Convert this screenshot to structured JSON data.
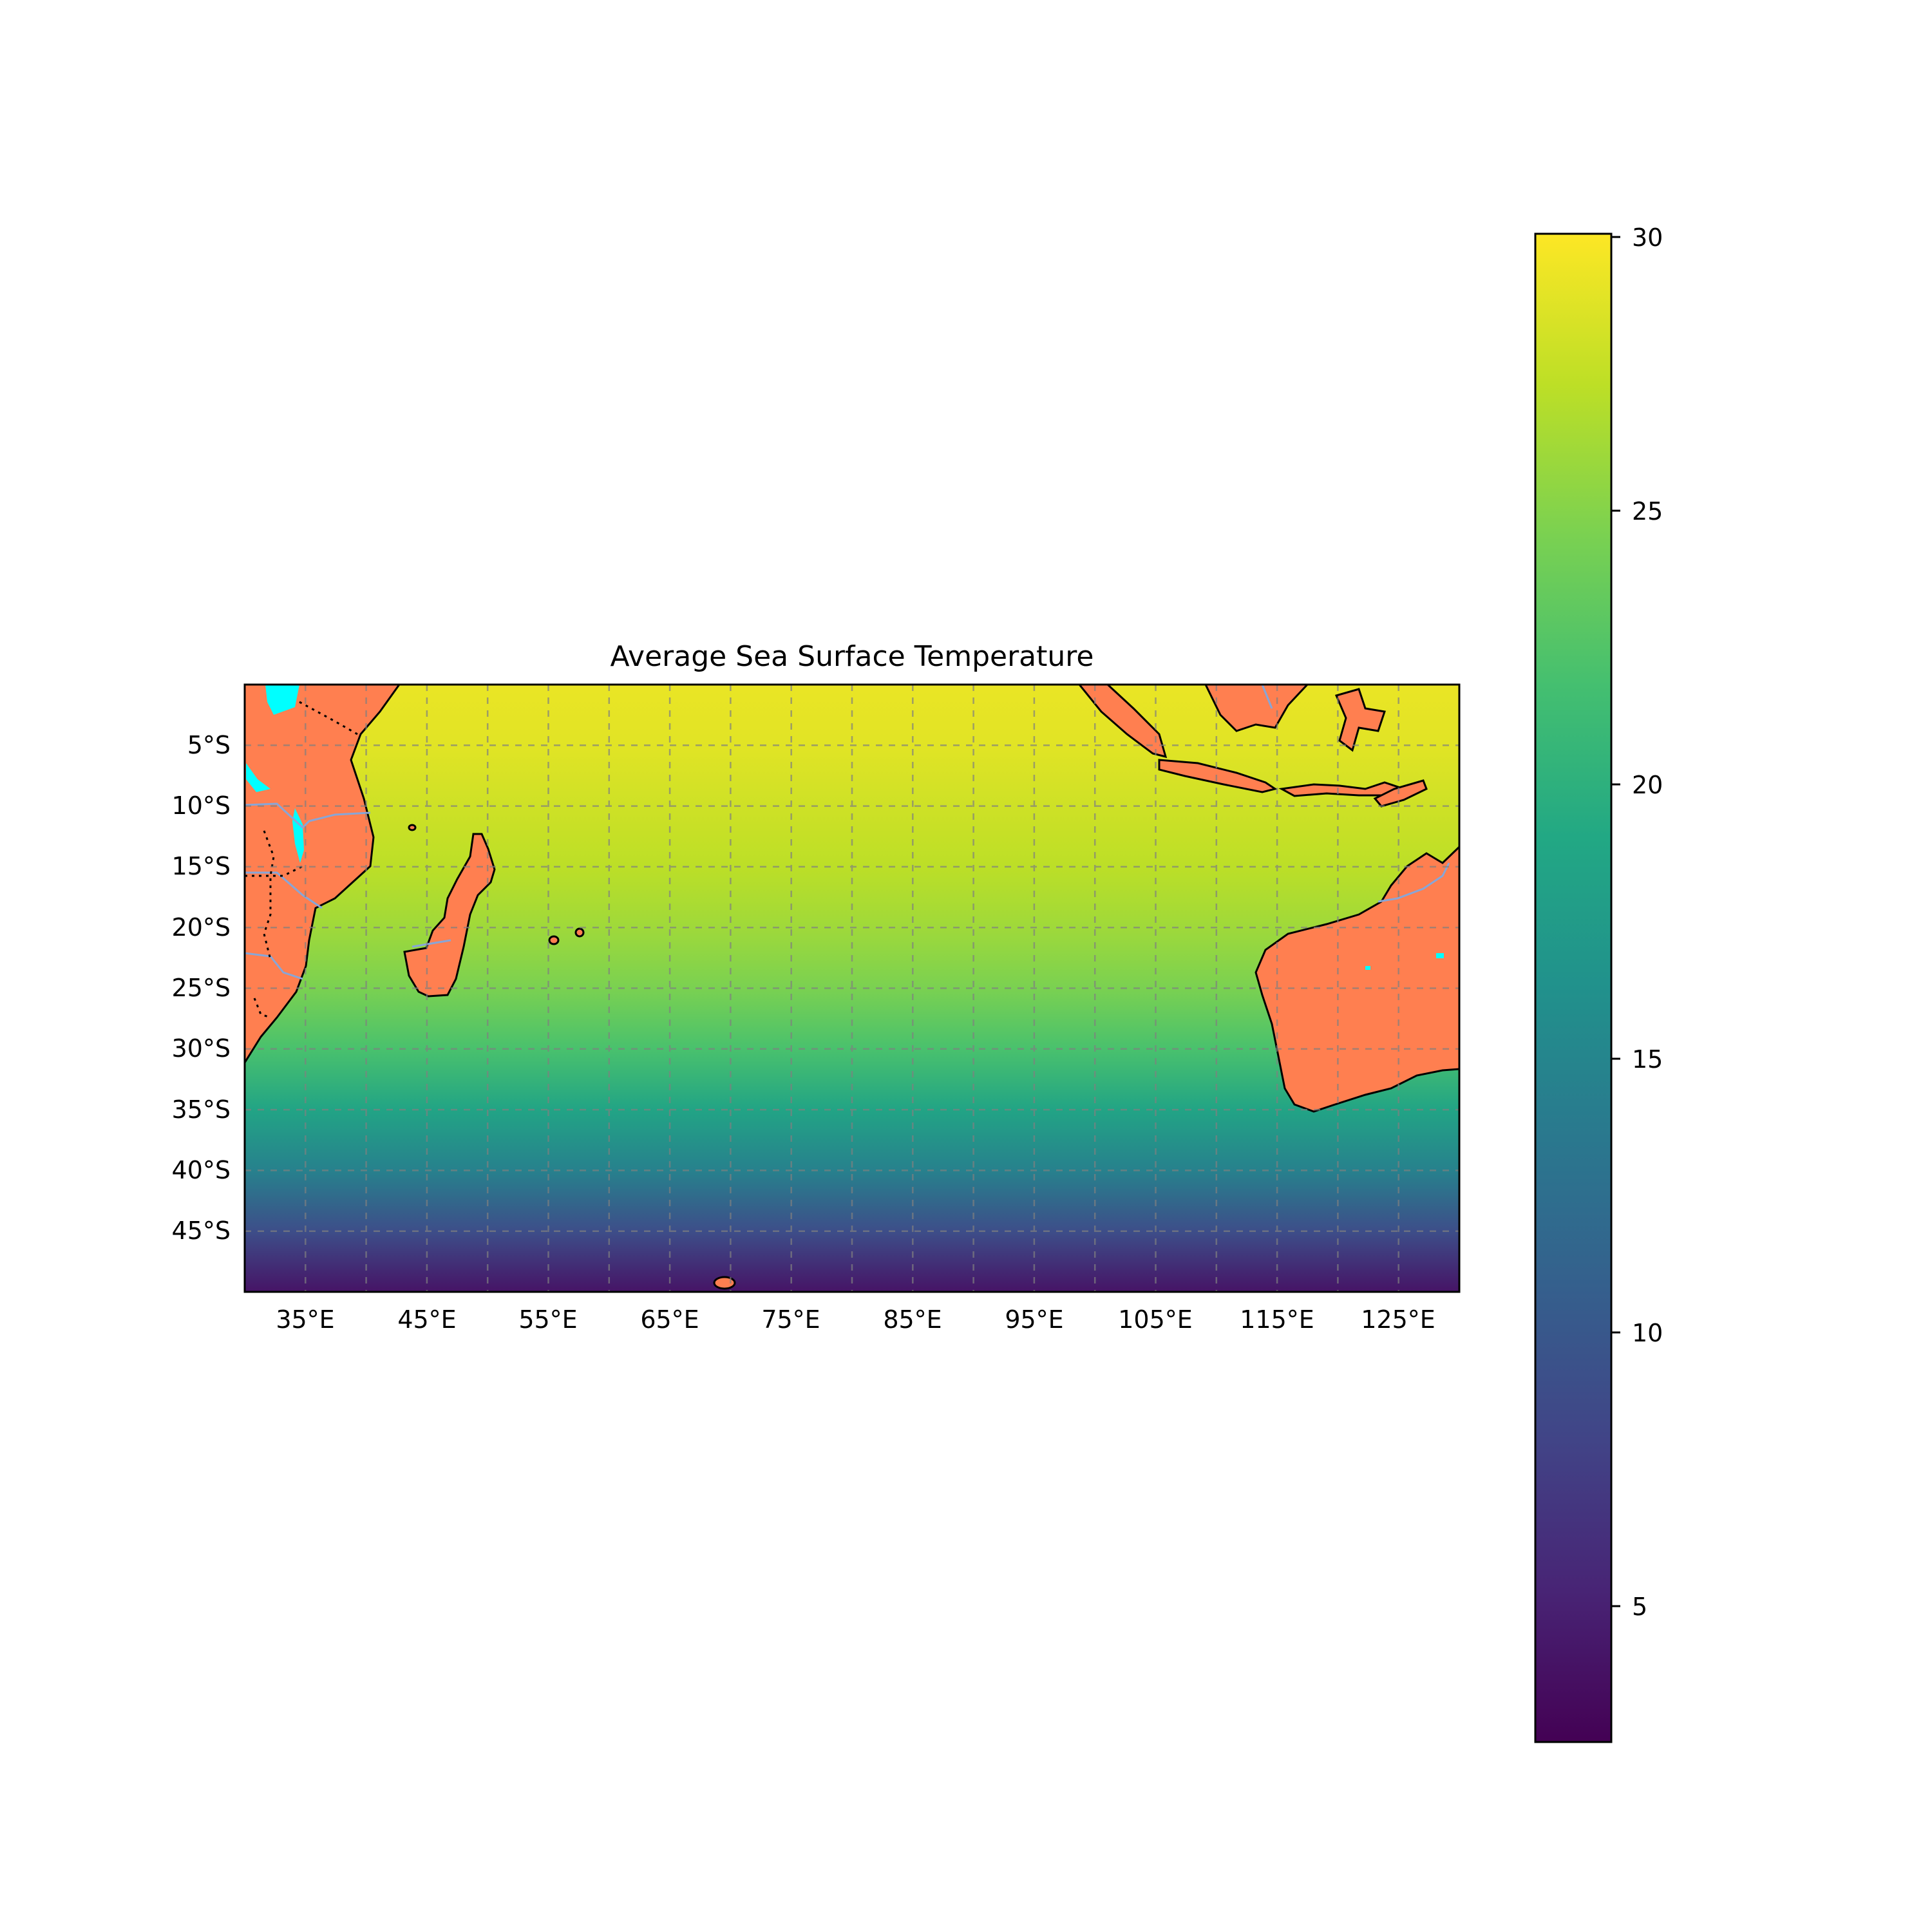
{
  "title": "Average Sea Surface Temperature",
  "chart_data": {
    "type": "heatmap",
    "title": "Average Sea Surface Temperature",
    "xlabel": "",
    "ylabel": "",
    "x_ticks": [
      "35°E",
      "45°E",
      "55°E",
      "65°E",
      "75°E",
      "85°E",
      "95°E",
      "105°E",
      "115°E",
      "125°E"
    ],
    "y_ticks": [
      "5°S",
      "10°S",
      "15°S",
      "20°S",
      "25°S",
      "30°S",
      "35°S",
      "40°S",
      "45°S"
    ],
    "lon_range": [
      30,
      130
    ],
    "lat_range": [
      -50,
      0
    ],
    "grid": true,
    "colormap": "viridis",
    "colorbar": {
      "range": [
        2.5,
        30
      ],
      "ticks": [
        "5",
        "10",
        "15",
        "20",
        "25",
        "30"
      ]
    },
    "sst_by_latitude": {
      "lat": [
        0,
        -5,
        -10,
        -15,
        -20,
        -25,
        -30,
        -35,
        -40,
        -45,
        -50
      ],
      "value": [
        29.2,
        28.8,
        28.0,
        27.2,
        26.0,
        24.5,
        22.0,
        18.5,
        14.5,
        9.0,
        4.0
      ]
    },
    "land_color": "#ff7f50",
    "lake_color": "#00ffff",
    "coastline_color": "#000000",
    "river_color": "#87a6d8"
  }
}
